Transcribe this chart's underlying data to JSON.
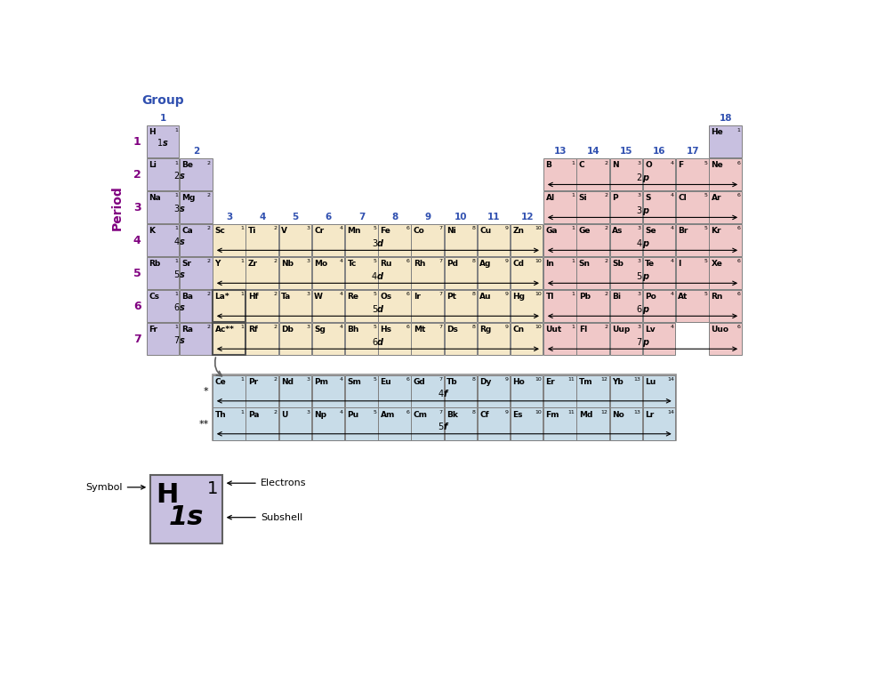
{
  "colors": {
    "purple": "#c8c0e0",
    "yellow": "#f5e8c8",
    "red": "#f0c8c8",
    "green": "#c8dce8",
    "border": "#808080"
  },
  "group_label_color": "#3050b0",
  "period_label_color": "#800080",
  "title_group": "Group",
  "title_period": "Period",
  "elements": {
    "main": [
      {
        "period": 1,
        "group": 1,
        "symbol": "H",
        "electrons": 1,
        "color": "purple"
      },
      {
        "period": 1,
        "group": 18,
        "symbol": "He",
        "electrons": 1,
        "color": "purple"
      },
      {
        "period": 2,
        "group": 1,
        "symbol": "Li",
        "electrons": 1,
        "color": "purple"
      },
      {
        "period": 2,
        "group": 2,
        "symbol": "Be",
        "electrons": 2,
        "color": "purple"
      },
      {
        "period": 2,
        "group": 13,
        "symbol": "B",
        "electrons": 1,
        "color": "red"
      },
      {
        "period": 2,
        "group": 14,
        "symbol": "C",
        "electrons": 2,
        "color": "red"
      },
      {
        "period": 2,
        "group": 15,
        "symbol": "N",
        "electrons": 3,
        "color": "red"
      },
      {
        "period": 2,
        "group": 16,
        "symbol": "O",
        "electrons": 4,
        "color": "red"
      },
      {
        "period": 2,
        "group": 17,
        "symbol": "F",
        "electrons": 5,
        "color": "red"
      },
      {
        "period": 2,
        "group": 18,
        "symbol": "Ne",
        "electrons": 6,
        "color": "red"
      },
      {
        "period": 3,
        "group": 1,
        "symbol": "Na",
        "electrons": 1,
        "color": "purple"
      },
      {
        "period": 3,
        "group": 2,
        "symbol": "Mg",
        "electrons": 2,
        "color": "purple"
      },
      {
        "period": 3,
        "group": 13,
        "symbol": "Al",
        "electrons": 1,
        "color": "red"
      },
      {
        "period": 3,
        "group": 14,
        "symbol": "Si",
        "electrons": 2,
        "color": "red"
      },
      {
        "period": 3,
        "group": 15,
        "symbol": "P",
        "electrons": 3,
        "color": "red"
      },
      {
        "period": 3,
        "group": 16,
        "symbol": "S",
        "electrons": 4,
        "color": "red"
      },
      {
        "period": 3,
        "group": 17,
        "symbol": "Cl",
        "electrons": 5,
        "color": "red"
      },
      {
        "period": 3,
        "group": 18,
        "symbol": "Ar",
        "electrons": 6,
        "color": "red"
      },
      {
        "period": 4,
        "group": 1,
        "symbol": "K",
        "electrons": 1,
        "color": "purple"
      },
      {
        "period": 4,
        "group": 2,
        "symbol": "Ca",
        "electrons": 2,
        "color": "purple"
      },
      {
        "period": 4,
        "group": 3,
        "symbol": "Sc",
        "electrons": 1,
        "color": "yellow"
      },
      {
        "period": 4,
        "group": 4,
        "symbol": "Ti",
        "electrons": 2,
        "color": "yellow"
      },
      {
        "period": 4,
        "group": 5,
        "symbol": "V",
        "electrons": 3,
        "color": "yellow"
      },
      {
        "period": 4,
        "group": 6,
        "symbol": "Cr",
        "electrons": 4,
        "color": "yellow"
      },
      {
        "period": 4,
        "group": 7,
        "symbol": "Mn",
        "electrons": 5,
        "color": "yellow"
      },
      {
        "period": 4,
        "group": 8,
        "symbol": "Fe",
        "electrons": 6,
        "color": "yellow"
      },
      {
        "period": 4,
        "group": 9,
        "symbol": "Co",
        "electrons": 7,
        "color": "yellow"
      },
      {
        "period": 4,
        "group": 10,
        "symbol": "Ni",
        "electrons": 8,
        "color": "yellow"
      },
      {
        "period": 4,
        "group": 11,
        "symbol": "Cu",
        "electrons": 9,
        "color": "yellow"
      },
      {
        "period": 4,
        "group": 12,
        "symbol": "Zn",
        "electrons": 10,
        "color": "yellow"
      },
      {
        "period": 4,
        "group": 13,
        "symbol": "Ga",
        "electrons": 1,
        "color": "red"
      },
      {
        "period": 4,
        "group": 14,
        "symbol": "Ge",
        "electrons": 2,
        "color": "red"
      },
      {
        "period": 4,
        "group": 15,
        "symbol": "As",
        "electrons": 3,
        "color": "red"
      },
      {
        "period": 4,
        "group": 16,
        "symbol": "Se",
        "electrons": 4,
        "color": "red"
      },
      {
        "period": 4,
        "group": 17,
        "symbol": "Br",
        "electrons": 5,
        "color": "red"
      },
      {
        "period": 4,
        "group": 18,
        "symbol": "Kr",
        "electrons": 6,
        "color": "red"
      },
      {
        "period": 5,
        "group": 1,
        "symbol": "Rb",
        "electrons": 1,
        "color": "purple"
      },
      {
        "period": 5,
        "group": 2,
        "symbol": "Sr",
        "electrons": 2,
        "color": "purple"
      },
      {
        "period": 5,
        "group": 3,
        "symbol": "Y",
        "electrons": 1,
        "color": "yellow"
      },
      {
        "period": 5,
        "group": 4,
        "symbol": "Zr",
        "electrons": 2,
        "color": "yellow"
      },
      {
        "period": 5,
        "group": 5,
        "symbol": "Nb",
        "electrons": 3,
        "color": "yellow"
      },
      {
        "period": 5,
        "group": 6,
        "symbol": "Mo",
        "electrons": 4,
        "color": "yellow"
      },
      {
        "period": 5,
        "group": 7,
        "symbol": "Tc",
        "electrons": 5,
        "color": "yellow"
      },
      {
        "period": 5,
        "group": 8,
        "symbol": "Ru",
        "electrons": 6,
        "color": "yellow"
      },
      {
        "period": 5,
        "group": 9,
        "symbol": "Rh",
        "electrons": 7,
        "color": "yellow"
      },
      {
        "period": 5,
        "group": 10,
        "symbol": "Pd",
        "electrons": 8,
        "color": "yellow"
      },
      {
        "period": 5,
        "group": 11,
        "symbol": "Ag",
        "electrons": 9,
        "color": "yellow"
      },
      {
        "period": 5,
        "group": 12,
        "symbol": "Cd",
        "electrons": 10,
        "color": "yellow"
      },
      {
        "period": 5,
        "group": 13,
        "symbol": "In",
        "electrons": 1,
        "color": "red"
      },
      {
        "period": 5,
        "group": 14,
        "symbol": "Sn",
        "electrons": 2,
        "color": "red"
      },
      {
        "period": 5,
        "group": 15,
        "symbol": "Sb",
        "electrons": 3,
        "color": "red"
      },
      {
        "period": 5,
        "group": 16,
        "symbol": "Te",
        "electrons": 4,
        "color": "red"
      },
      {
        "period": 5,
        "group": 17,
        "symbol": "I",
        "electrons": 5,
        "color": "red"
      },
      {
        "period": 5,
        "group": 18,
        "symbol": "Xe",
        "electrons": 6,
        "color": "red"
      },
      {
        "period": 6,
        "group": 1,
        "symbol": "Cs",
        "electrons": 1,
        "color": "purple"
      },
      {
        "period": 6,
        "group": 2,
        "symbol": "Ba",
        "electrons": 2,
        "color": "purple"
      },
      {
        "period": 6,
        "group": 3,
        "symbol": "La",
        "electrons": 1,
        "color": "yellow",
        "asterisk": "*"
      },
      {
        "period": 6,
        "group": 4,
        "symbol": "Hf",
        "electrons": 2,
        "color": "yellow"
      },
      {
        "period": 6,
        "group": 5,
        "symbol": "Ta",
        "electrons": 3,
        "color": "yellow"
      },
      {
        "period": 6,
        "group": 6,
        "symbol": "W",
        "electrons": 4,
        "color": "yellow"
      },
      {
        "period": 6,
        "group": 7,
        "symbol": "Re",
        "electrons": 5,
        "color": "yellow"
      },
      {
        "period": 6,
        "group": 8,
        "symbol": "Os",
        "electrons": 6,
        "color": "yellow"
      },
      {
        "period": 6,
        "group": 9,
        "symbol": "Ir",
        "electrons": 7,
        "color": "yellow"
      },
      {
        "period": 6,
        "group": 10,
        "symbol": "Pt",
        "electrons": 8,
        "color": "yellow"
      },
      {
        "period": 6,
        "group": 11,
        "symbol": "Au",
        "electrons": 9,
        "color": "yellow"
      },
      {
        "period": 6,
        "group": 12,
        "symbol": "Hg",
        "electrons": 10,
        "color": "yellow"
      },
      {
        "period": 6,
        "group": 13,
        "symbol": "Tl",
        "electrons": 1,
        "color": "red"
      },
      {
        "period": 6,
        "group": 14,
        "symbol": "Pb",
        "electrons": 2,
        "color": "red"
      },
      {
        "period": 6,
        "group": 15,
        "symbol": "Bi",
        "electrons": 3,
        "color": "red"
      },
      {
        "period": 6,
        "group": 16,
        "symbol": "Po",
        "electrons": 4,
        "color": "red"
      },
      {
        "period": 6,
        "group": 17,
        "symbol": "At",
        "electrons": 5,
        "color": "red"
      },
      {
        "period": 6,
        "group": 18,
        "symbol": "Rn",
        "electrons": 6,
        "color": "red"
      },
      {
        "period": 7,
        "group": 1,
        "symbol": "Fr",
        "electrons": 1,
        "color": "purple"
      },
      {
        "period": 7,
        "group": 2,
        "symbol": "Ra",
        "electrons": 2,
        "color": "purple"
      },
      {
        "period": 7,
        "group": 3,
        "symbol": "Ac",
        "electrons": 1,
        "color": "yellow",
        "asterisk": "**"
      },
      {
        "period": 7,
        "group": 4,
        "symbol": "Rf",
        "electrons": 2,
        "color": "yellow"
      },
      {
        "period": 7,
        "group": 5,
        "symbol": "Db",
        "electrons": 3,
        "color": "yellow"
      },
      {
        "period": 7,
        "group": 6,
        "symbol": "Sg",
        "electrons": 4,
        "color": "yellow"
      },
      {
        "period": 7,
        "group": 7,
        "symbol": "Bh",
        "electrons": 5,
        "color": "yellow"
      },
      {
        "period": 7,
        "group": 8,
        "symbol": "Hs",
        "electrons": 6,
        "color": "yellow"
      },
      {
        "period": 7,
        "group": 9,
        "symbol": "Mt",
        "electrons": 7,
        "color": "yellow"
      },
      {
        "period": 7,
        "group": 10,
        "symbol": "Ds",
        "electrons": 8,
        "color": "yellow"
      },
      {
        "period": 7,
        "group": 11,
        "symbol": "Rg",
        "electrons": 9,
        "color": "yellow"
      },
      {
        "period": 7,
        "group": 12,
        "symbol": "Cn",
        "electrons": 10,
        "color": "yellow"
      },
      {
        "period": 7,
        "group": 13,
        "symbol": "Uut",
        "electrons": 1,
        "color": "red"
      },
      {
        "period": 7,
        "group": 14,
        "symbol": "Fl",
        "electrons": 2,
        "color": "red"
      },
      {
        "period": 7,
        "group": 15,
        "symbol": "Uup",
        "electrons": 3,
        "color": "red"
      },
      {
        "period": 7,
        "group": 16,
        "symbol": "Lv",
        "electrons": 4,
        "color": "red"
      },
      {
        "period": 7,
        "group": 18,
        "symbol": "Uuo",
        "electrons": 6,
        "color": "red"
      }
    ],
    "lanthanides": [
      {
        "symbol": "Ce",
        "electrons": 1
      },
      {
        "symbol": "Pr",
        "electrons": 2
      },
      {
        "symbol": "Nd",
        "electrons": 3
      },
      {
        "symbol": "Pm",
        "electrons": 4
      },
      {
        "symbol": "Sm",
        "electrons": 5
      },
      {
        "symbol": "Eu",
        "electrons": 6
      },
      {
        "symbol": "Gd",
        "electrons": 7
      },
      {
        "symbol": "Tb",
        "electrons": 8
      },
      {
        "symbol": "Dy",
        "electrons": 9
      },
      {
        "symbol": "Ho",
        "electrons": 10
      },
      {
        "symbol": "Er",
        "electrons": 11
      },
      {
        "symbol": "Tm",
        "electrons": 12
      },
      {
        "symbol": "Yb",
        "electrons": 13
      },
      {
        "symbol": "Lu",
        "electrons": 14
      }
    ],
    "actinides": [
      {
        "symbol": "Th",
        "electrons": 1
      },
      {
        "symbol": "Pa",
        "electrons": 2
      },
      {
        "symbol": "U",
        "electrons": 3
      },
      {
        "symbol": "Np",
        "electrons": 4
      },
      {
        "symbol": "Pu",
        "electrons": 5
      },
      {
        "symbol": "Am",
        "electrons": 6
      },
      {
        "symbol": "Cm",
        "electrons": 7
      },
      {
        "symbol": "Bk",
        "electrons": 8
      },
      {
        "symbol": "Cf",
        "electrons": 9
      },
      {
        "symbol": "Es",
        "electrons": 10
      },
      {
        "symbol": "Fm",
        "electrons": 11
      },
      {
        "symbol": "Md",
        "electrons": 12
      },
      {
        "symbol": "No",
        "electrons": 13
      },
      {
        "symbol": "Lr",
        "electrons": 14
      }
    ]
  },
  "subshell_arrows": [
    {
      "period": 1,
      "g1": 1,
      "g2": 1,
      "label": "1s",
      "wide": false
    },
    {
      "period": 2,
      "g1": 1,
      "g2": 2,
      "label": "2s",
      "wide": false
    },
    {
      "period": 2,
      "g1": 13,
      "g2": 18,
      "label": "2p",
      "wide": true
    },
    {
      "period": 3,
      "g1": 1,
      "g2": 2,
      "label": "3s",
      "wide": false
    },
    {
      "period": 3,
      "g1": 13,
      "g2": 18,
      "label": "3p",
      "wide": true
    },
    {
      "period": 4,
      "g1": 1,
      "g2": 2,
      "label": "4s",
      "wide": false
    },
    {
      "period": 4,
      "g1": 3,
      "g2": 12,
      "label": "3d",
      "wide": true
    },
    {
      "period": 4,
      "g1": 13,
      "g2": 18,
      "label": "4p",
      "wide": true
    },
    {
      "period": 5,
      "g1": 1,
      "g2": 2,
      "label": "5s",
      "wide": false
    },
    {
      "period": 5,
      "g1": 3,
      "g2": 12,
      "label": "4d",
      "wide": true
    },
    {
      "period": 5,
      "g1": 13,
      "g2": 18,
      "label": "5p",
      "wide": true
    },
    {
      "period": 6,
      "g1": 1,
      "g2": 2,
      "label": "6s",
      "wide": false
    },
    {
      "period": 6,
      "g1": 3,
      "g2": 12,
      "label": "5d",
      "wide": true
    },
    {
      "period": 6,
      "g1": 13,
      "g2": 18,
      "label": "6p",
      "wide": true
    },
    {
      "period": 7,
      "g1": 1,
      "g2": 2,
      "label": "7s",
      "wide": false
    },
    {
      "period": 7,
      "g1": 3,
      "g2": 12,
      "label": "6d",
      "wide": true
    },
    {
      "period": 7,
      "g1": 13,
      "g2": 18,
      "label": "7p",
      "wide": true
    }
  ],
  "lant_label": "4f",
  "act_label": "5f"
}
